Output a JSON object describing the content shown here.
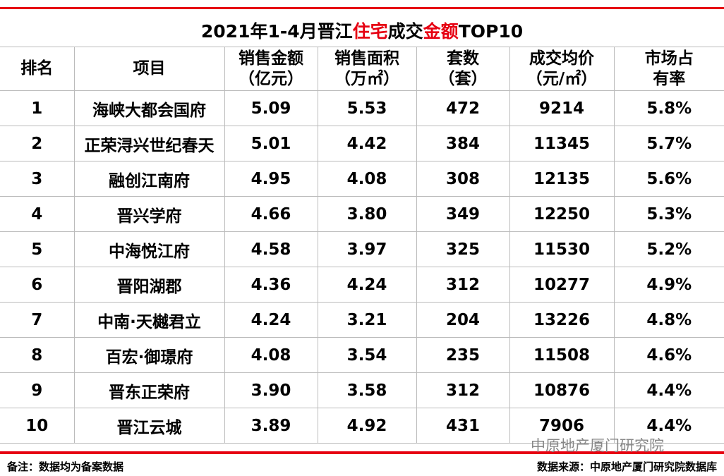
{
  "title": {
    "parts": [
      {
        "text": "2021年1-4月晋江",
        "accent": false
      },
      {
        "text": "住宅",
        "accent": true
      },
      {
        "text": "成交",
        "accent": false
      },
      {
        "text": "金额",
        "accent": true
      },
      {
        "text": "TOP10",
        "accent": false
      }
    ]
  },
  "table": {
    "headers": [
      [
        "排名"
      ],
      [
        "项目"
      ],
      [
        "销售金额",
        "（亿元）"
      ],
      [
        "销售面积",
        "（万㎡）"
      ],
      [
        "套数",
        "（套）"
      ],
      [
        "成交均价",
        "（元/㎡）"
      ],
      [
        "市场占",
        "有率"
      ]
    ],
    "rows": [
      [
        "1",
        "海峡大都会国府",
        "5.09",
        "5.53",
        "472",
        "9214",
        "5.8%"
      ],
      [
        "2",
        "正荣浔兴世纪春天",
        "5.01",
        "4.42",
        "384",
        "11345",
        "5.7%"
      ],
      [
        "3",
        "融创江南府",
        "4.95",
        "4.08",
        "308",
        "12135",
        "5.6%"
      ],
      [
        "4",
        "晋兴学府",
        "4.66",
        "3.80",
        "349",
        "12250",
        "5.3%"
      ],
      [
        "5",
        "中海悦江府",
        "4.58",
        "3.97",
        "325",
        "11530",
        "5.2%"
      ],
      [
        "6",
        "晋阳湖郡",
        "4.36",
        "4.24",
        "312",
        "10277",
        "4.9%"
      ],
      [
        "7",
        "中南·天樾君立",
        "4.24",
        "3.21",
        "204",
        "13226",
        "4.8%"
      ],
      [
        "8",
        "百宏·御璟府",
        "4.08",
        "3.54",
        "235",
        "11508",
        "4.6%"
      ],
      [
        "9",
        "晋东正荣府",
        "3.90",
        "3.58",
        "312",
        "10876",
        "4.4%"
      ],
      [
        "10",
        "晋江云城",
        "3.89",
        "4.92",
        "431",
        "7906",
        "4.4%"
      ]
    ]
  },
  "footer": {
    "note": "备注：数据均为备案数据",
    "source": "数据来源：中原地产厦门研究院数据库"
  },
  "watermark": "中原地产厦门研究院"
}
